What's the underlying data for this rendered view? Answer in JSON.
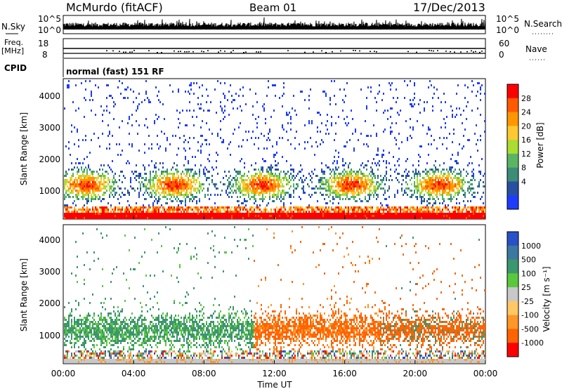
{
  "header": {
    "station": "McMurdo (fitACF)",
    "beam": "Beam 01",
    "date": "17/Dec/2013"
  },
  "noise_panel": {
    "left_label": "N.Sky",
    "right_label": "N.Search",
    "ticks_left": [
      "10^5",
      "10^0"
    ],
    "ticks_right": [
      "10^5",
      "10^0"
    ]
  },
  "freq_panel": {
    "left_label_1": "Freq.",
    "left_label_2": "[MHz]",
    "right_label": "Nave",
    "ticks_left": [
      "18",
      "8"
    ],
    "ticks_right": [
      "60",
      "0"
    ]
  },
  "cpid_panel": {
    "label": "CPID",
    "mode": "normal (fast) 151 RF"
  },
  "power_panel": {
    "ylabel": "Slant Range [km]",
    "yticks": [
      "4000",
      "3000",
      "2000",
      "1000"
    ],
    "colorbar_title": "Power [dB]",
    "colorbar_labels": [
      "28",
      "24",
      "20",
      "16",
      "12",
      "8",
      "4"
    ],
    "colors": [
      "#ff0000",
      "#ff5a00",
      "#ff9600",
      "#ffc832",
      "#aadc32",
      "#5ab464",
      "#3c8c78",
      "#2850a0",
      "#1e3cff"
    ]
  },
  "velocity_panel": {
    "ylabel": "Slant Range [km]",
    "yticks": [
      "4000",
      "3000",
      "2000",
      "1000"
    ],
    "colorbar_title": "Velocity [m s⁻¹]",
    "colorbar_labels": [
      "1000",
      "500",
      "100",
      "25",
      "-25",
      "-100",
      "-500",
      "-1000"
    ],
    "colors": [
      "#2850c8",
      "#3c78a0",
      "#3c966e",
      "#5ac83c",
      "#c8c8c8",
      "#ffc864",
      "#ff9628",
      "#ff6400",
      "#ff0000"
    ]
  },
  "xaxis": {
    "label": "Time UT",
    "ticks": [
      "00:00",
      "04:00",
      "08:00",
      "12:00",
      "16:00",
      "20:00",
      "00:00"
    ]
  },
  "chart_data": [
    {
      "type": "heatmap",
      "title": "Power",
      "xlabel": "Time UT",
      "ylabel": "Slant Range [km]",
      "xlim": [
        "00:00",
        "24:00"
      ],
      "ylim": [
        180,
        4600
      ],
      "colorbar": {
        "label": "Power [dB]",
        "ticks": [
          4,
          8,
          12,
          16,
          20,
          24,
          28
        ]
      }
    },
    {
      "type": "heatmap",
      "title": "Velocity",
      "xlabel": "Time UT",
      "ylabel": "Slant Range [km]",
      "xlim": [
        "00:00",
        "24:00"
      ],
      "ylim": [
        180,
        4600
      ],
      "colorbar": {
        "label": "Velocity [m s⁻¹]",
        "ticks": [
          1000,
          500,
          100,
          25,
          -25,
          -100,
          -500,
          -1000
        ]
      }
    }
  ]
}
